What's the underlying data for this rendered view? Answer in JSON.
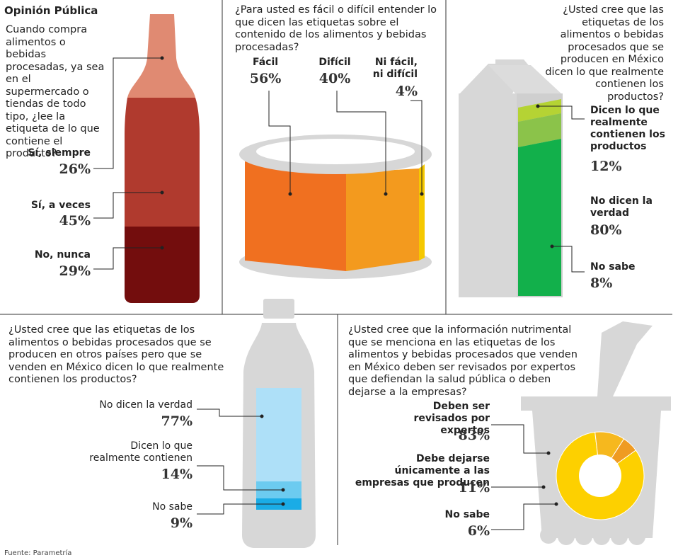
{
  "title": "Opinión Pública",
  "source": "Fuente: Parametría",
  "chart_data": [
    {
      "type": "bar",
      "question": "Cuando compra alimentos o bebidas procesadas, ya sea en el supermercado o  tiendas de todo tipo, ¿lee la etiqueta de lo que contiene el producto?",
      "categories": [
        "Sí, siempre",
        "Sí, a veces",
        "No, nunca"
      ],
      "values": [
        26,
        45,
        29
      ],
      "labels": [
        "26%",
        "45%",
        "29%"
      ],
      "colors": [
        "#e08a72",
        "#b03a2e",
        "#730d0d"
      ]
    },
    {
      "type": "bar",
      "question": "¿Para usted es fácil o difícil entender lo que dicen las etiquetas sobre el contenido de los alimentos y bebidas procesadas?",
      "categories": [
        "Fácil",
        "Difícil",
        "Ni fácil, ni difícil"
      ],
      "values": [
        56,
        40,
        4
      ],
      "labels": [
        "56%",
        "40%",
        "4%"
      ],
      "colors": [
        "#f07020",
        "#f39a1e",
        "#f5c800"
      ]
    },
    {
      "type": "bar",
      "question": "¿Usted cree que las etiquetas de los alimentos o bebidas procesados que se producen en México dicen lo que realmente contienen los productos?",
      "categories": [
        "Dicen lo que realmente contienen los productos",
        "No dicen la verdad",
        "No sabe"
      ],
      "values": [
        12,
        80,
        8
      ],
      "labels": [
        "12%",
        "80%",
        "8%"
      ],
      "colors": [
        "#8bc34a",
        "#12b04b",
        "#b5d334"
      ]
    },
    {
      "type": "bar",
      "question": "¿Usted cree que las etiquetas de los alimentos o bebidas procesados que se producen en otros países pero que se venden en México dicen lo que realmente contienen los productos?",
      "categories": [
        "No dicen la verdad",
        "Dicen lo que realmente contienen",
        "No sabe"
      ],
      "values": [
        77,
        14,
        9
      ],
      "labels": [
        "77%",
        "14%",
        "9%"
      ],
      "colors": [
        "#aee0f8",
        "#6ccbf0",
        "#1aace6"
      ]
    },
    {
      "type": "pie",
      "question": "¿Usted cree que la información nutrimental que se menciona en las etiquetas de los alimentos y bebidas procesados que venden en México deben ser revisados por expertos que defiendan la salud pública o deben dejarse a la empresas?",
      "categories": [
        "Deben ser revisados por expertos",
        "Debe dejarse únicamente a las empresas que producen",
        "No sabe"
      ],
      "values": [
        83,
        11,
        6
      ],
      "labels": [
        "83%",
        "11%",
        "6%"
      ],
      "colors": [
        "#fdd000",
        "#f6b81e",
        "#ef9b22"
      ]
    }
  ]
}
